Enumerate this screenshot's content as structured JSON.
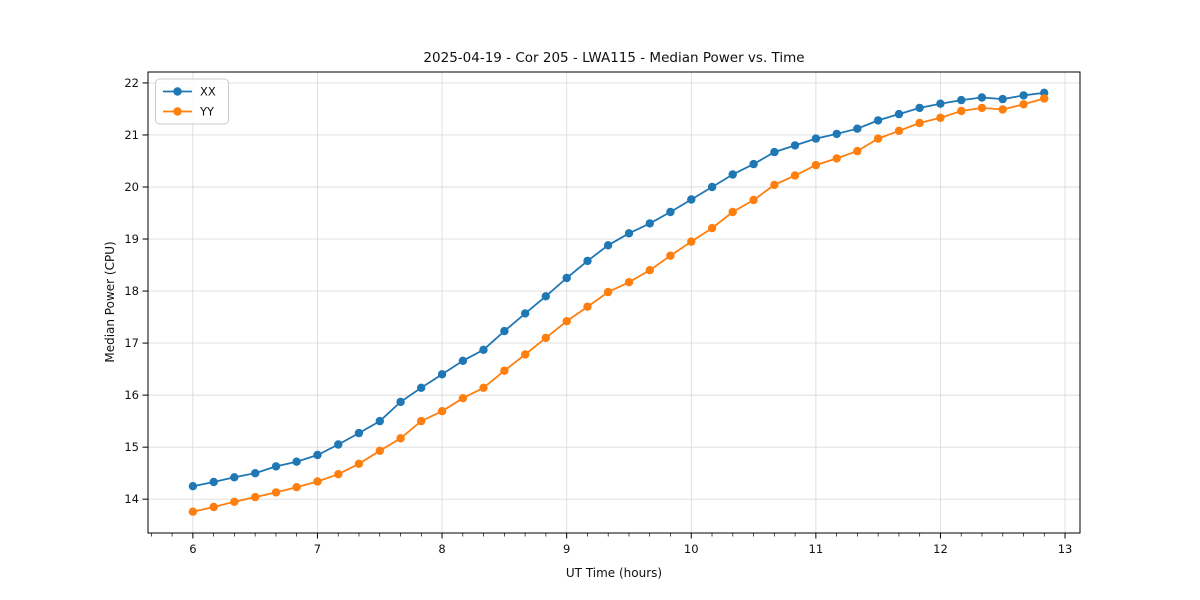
{
  "chart_data": {
    "type": "line",
    "title": "2025-04-19 - Cor 205 - LWA115 - Median Power vs. Time",
    "xlabel": "UT Time (hours)",
    "ylabel": "Median Power (CPU)",
    "xlim": [
      5.64,
      13.12
    ],
    "ylim": [
      13.35,
      22.21
    ],
    "xticks": [
      6,
      7,
      8,
      9,
      10,
      11,
      12,
      13
    ],
    "yticks": [
      14,
      15,
      16,
      17,
      18,
      19,
      20,
      21,
      22
    ],
    "x_minor_tick_step": 0.166667,
    "grid": true,
    "legend_position": "upper-left",
    "marker": "circle",
    "x": [
      6.0,
      6.167,
      6.333,
      6.5,
      6.667,
      6.833,
      7.0,
      7.167,
      7.333,
      7.5,
      7.667,
      7.833,
      8.0,
      8.167,
      8.333,
      8.5,
      8.667,
      8.833,
      9.0,
      9.167,
      9.333,
      9.5,
      9.667,
      9.833,
      10.0,
      10.167,
      10.333,
      10.5,
      10.667,
      10.833,
      11.0,
      11.167,
      11.333,
      11.5,
      11.667,
      11.833,
      12.0,
      12.167,
      12.333,
      12.5,
      12.667,
      12.833
    ],
    "series": [
      {
        "name": "XX",
        "color": "#1f77b4",
        "values": [
          14.25,
          14.33,
          14.42,
          14.5,
          14.63,
          14.72,
          14.85,
          15.05,
          15.27,
          15.5,
          15.87,
          16.14,
          16.4,
          16.66,
          16.87,
          17.23,
          17.57,
          17.9,
          18.25,
          18.58,
          18.88,
          19.11,
          19.3,
          19.52,
          19.76,
          20.0,
          20.24,
          20.44,
          20.67,
          20.8,
          20.93,
          21.02,
          21.12,
          21.28,
          21.4,
          21.52,
          21.6,
          21.67,
          21.72,
          21.69,
          21.76,
          21.81
        ]
      },
      {
        "name": "YY",
        "color": "#ff7f0e",
        "values": [
          13.76,
          13.85,
          13.95,
          14.04,
          14.13,
          14.23,
          14.34,
          14.48,
          14.68,
          14.93,
          15.17,
          15.5,
          15.69,
          15.94,
          16.14,
          16.47,
          16.78,
          17.1,
          17.42,
          17.7,
          17.98,
          18.17,
          18.4,
          18.68,
          18.95,
          19.21,
          19.52,
          19.75,
          20.04,
          20.22,
          20.42,
          20.55,
          20.69,
          20.93,
          21.08,
          21.23,
          21.33,
          21.46,
          21.52,
          21.49,
          21.59,
          21.7
        ]
      }
    ]
  }
}
